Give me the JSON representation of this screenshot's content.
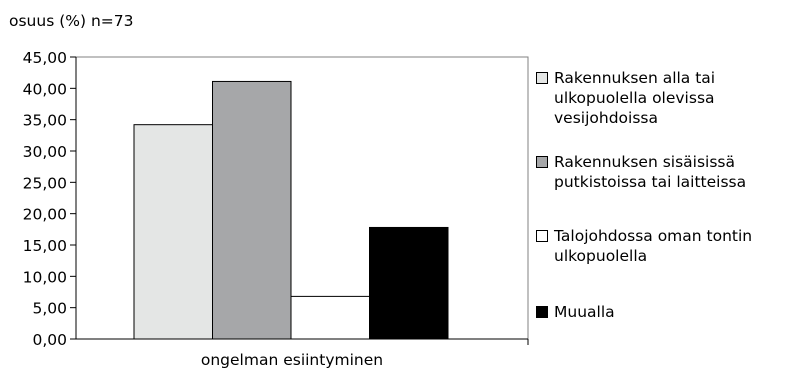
{
  "chart_data": {
    "type": "bar",
    "ylabel": "osuus (%) n=73",
    "xlabel": "ongelman esiintyminen",
    "ylim": [
      0,
      45
    ],
    "ytick_step": 5,
    "ytick_labels": [
      "0,00",
      "5,00",
      "10,00",
      "15,00",
      "20,00",
      "25,00",
      "30,00",
      "35,00",
      "40,00",
      "45,00"
    ],
    "grid": false,
    "legend_position": "right",
    "series": [
      {
        "name": "Rakennuksen alla tai ulkopuolella olevissa vesijohdoissa",
        "values": [
          34.2
        ],
        "color": "#e4e6e5"
      },
      {
        "name": "Rakennuksen sisäisissä putkistoissa tai laitteissa",
        "values": [
          41.1
        ],
        "color": "#a6a7a9"
      },
      {
        "name": "Talojohdossa oman tontin ulkopuolella",
        "values": [
          6.8
        ],
        "color": "#ffffff"
      },
      {
        "name": "Muualla",
        "values": [
          17.8
        ],
        "color": "#000000"
      }
    ]
  }
}
